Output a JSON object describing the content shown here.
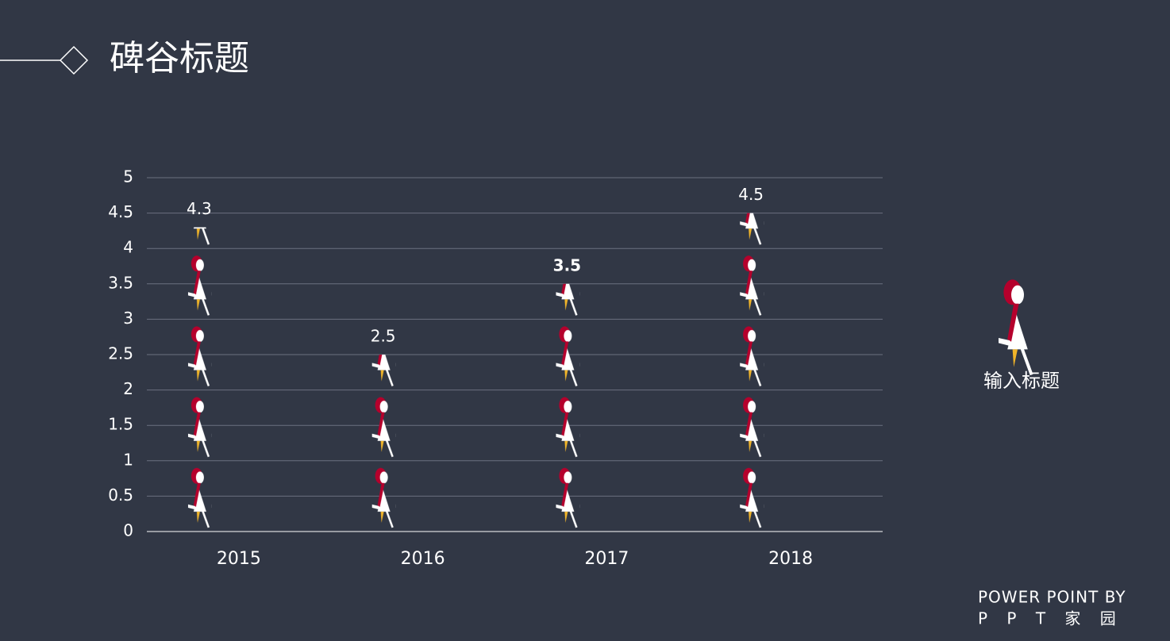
{
  "header": {
    "title": "碑谷标题"
  },
  "chart_data": {
    "type": "pictograph",
    "categories": [
      "2015",
      "2016",
      "2017",
      "2018"
    ],
    "series": [
      {
        "name": "输入标题",
        "color": "#b5002c",
        "values": [
          4.3,
          2.5,
          3.5,
          4.5
        ]
      }
    ],
    "value_label_colors": [
      "#ffffff",
      "#ffffff",
      "#e8101a",
      "#ffffff"
    ],
    "ylim": [
      0,
      5
    ],
    "yticks": [
      0,
      0.5,
      1,
      1.5,
      2,
      2.5,
      3,
      3.5,
      4,
      4.5,
      5
    ],
    "grid": true
  },
  "footer": [
    "POWER POINT BY",
    "P P T 家 园"
  ]
}
